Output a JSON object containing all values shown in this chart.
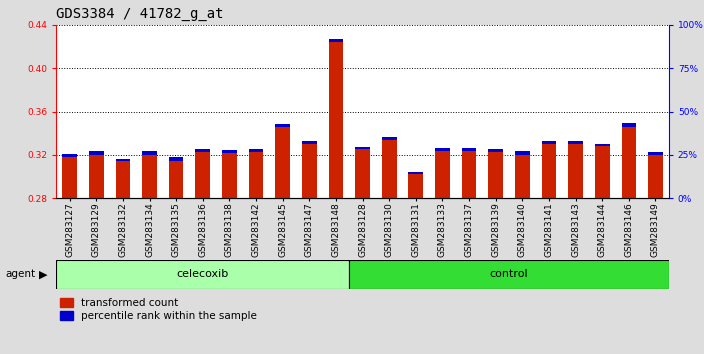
{
  "title": "GDS3384 / 41782_g_at",
  "samples": [
    "GSM283127",
    "GSM283129",
    "GSM283132",
    "GSM283134",
    "GSM283135",
    "GSM283136",
    "GSM283138",
    "GSM283142",
    "GSM283145",
    "GSM283147",
    "GSM283148",
    "GSM283128",
    "GSM283130",
    "GSM283131",
    "GSM283133",
    "GSM283137",
    "GSM283139",
    "GSM283140",
    "GSM283141",
    "GSM283143",
    "GSM283144",
    "GSM283146",
    "GSM283149"
  ],
  "transformed_count": [
    0.318,
    0.32,
    0.314,
    0.32,
    0.314,
    0.323,
    0.322,
    0.323,
    0.346,
    0.33,
    0.424,
    0.325,
    0.334,
    0.302,
    0.324,
    0.324,
    0.323,
    0.32,
    0.33,
    0.33,
    0.328,
    0.346,
    0.32
  ],
  "percentile_rank": [
    1.5,
    2.0,
    1.5,
    2.0,
    2.5,
    1.5,
    1.5,
    1.5,
    1.5,
    1.5,
    2.0,
    1.5,
    1.5,
    1.5,
    1.5,
    1.5,
    1.5,
    2.5,
    2.0,
    2.0,
    1.5,
    2.0,
    1.5
  ],
  "n_celecoxib": 11,
  "n_control": 12,
  "celecoxib_color": "#aaffaa",
  "control_color": "#33dd33",
  "bar_color_red": "#cc2200",
  "bar_color_blue": "#0000cc",
  "ylim_left": [
    0.28,
    0.44
  ],
  "ylim_right": [
    0,
    100
  ],
  "yticks_left": [
    0.28,
    0.32,
    0.36,
    0.4,
    0.44
  ],
  "ytick_labels_left": [
    "0.28",
    "0.32",
    "0.36",
    "0.40",
    "0.44"
  ],
  "yticks_right": [
    0,
    25,
    50,
    75,
    100
  ],
  "ytick_labels_right": [
    "0%",
    "25%",
    "50%",
    "75%",
    "100%"
  ],
  "bar_width": 0.55,
  "bg_color": "#dddddd",
  "plot_bg_color": "#ffffff",
  "title_fontsize": 10,
  "tick_fontsize": 6.5,
  "legend_fontsize": 7.5,
  "group_label_fontsize": 8
}
